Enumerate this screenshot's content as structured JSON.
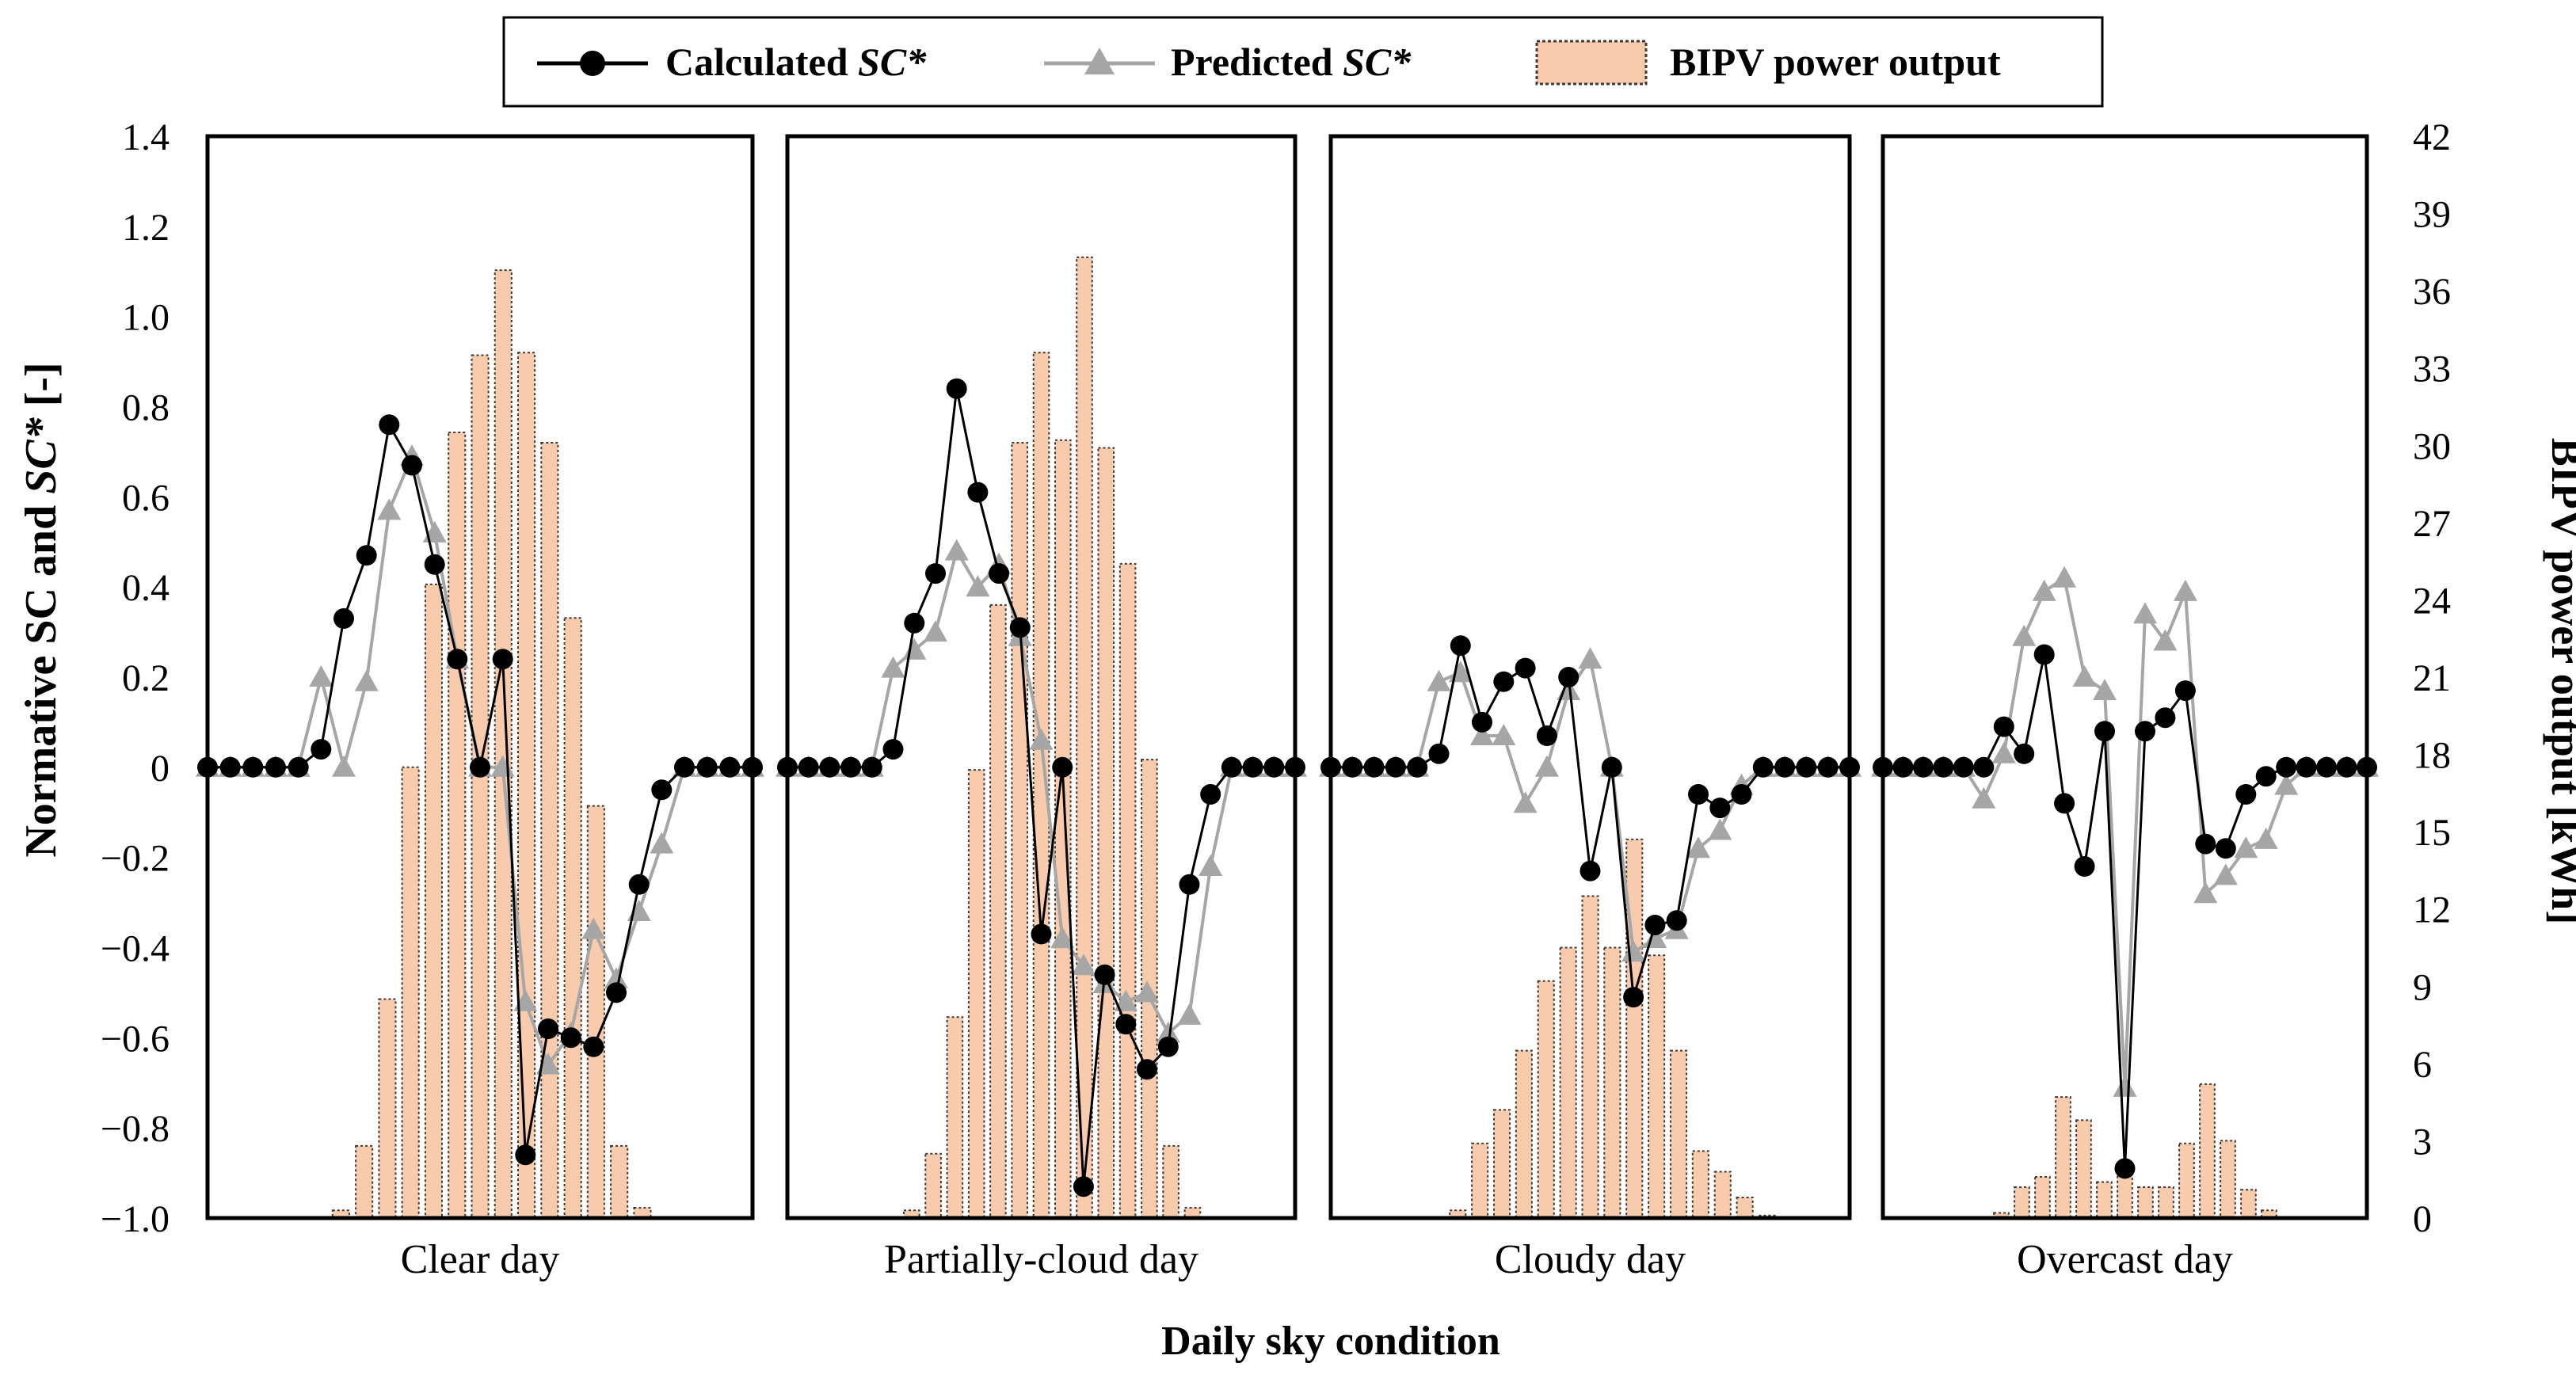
{
  "chart_data": {
    "type": "bar+line",
    "legend": {
      "position": "top-center",
      "entries": [
        {
          "key": "calculated",
          "label_main": "Calculated ",
          "label_italic": "SC*"
        },
        {
          "key": "predicted",
          "label_main": "Predicted ",
          "label_italic": "SC*"
        },
        {
          "key": "power",
          "label_main": "BIPV power output",
          "label_italic": ""
        }
      ]
    },
    "y_left": {
      "label_pre": "Normative SC and ",
      "label_italic": "SC*",
      "label_post": " [-]",
      "range": [
        -1.0,
        1.4
      ],
      "ticks": [
        "−1.0",
        "−0.8",
        "−0.6",
        "−0.4",
        "−0.2",
        "0",
        "0.2",
        "0.4",
        "0.6",
        "0.8",
        "1.0",
        "1.2",
        "1.4"
      ],
      "tick_values": [
        -1.0,
        -0.8,
        -0.6,
        -0.4,
        -0.2,
        0,
        0.2,
        0.4,
        0.6,
        0.8,
        1.0,
        1.2,
        1.4
      ]
    },
    "y_right": {
      "label": "BIPV power output [kWh]",
      "range": [
        0,
        42
      ],
      "ticks": [
        "0",
        "3",
        "6",
        "9",
        "12",
        "15",
        "18",
        "21",
        "24",
        "27",
        "30",
        "33",
        "36",
        "39",
        "42"
      ],
      "tick_values": [
        0,
        3,
        6,
        9,
        12,
        15,
        18,
        21,
        24,
        27,
        30,
        33,
        36,
        39,
        42
      ]
    },
    "xlabel": "Daily sky condition",
    "colors": {
      "calculated": "#000000",
      "predicted": "#a6a6a6",
      "bar_fill": "#f8cbad",
      "bar_stroke": "#3a3a3a"
    },
    "panels": [
      {
        "name": "Clear day",
        "power": [
          0,
          0,
          0,
          0,
          0,
          0.3,
          2.8,
          8.5,
          17.5,
          24.6,
          30.5,
          33.5,
          36.8,
          33.6,
          30.1,
          23.3,
          16.0,
          2.8,
          0.4,
          0,
          0,
          0,
          0
        ],
        "calculated": [
          0,
          0,
          0,
          0,
          0,
          0.04,
          0.33,
          0.47,
          0.76,
          0.67,
          0.45,
          0.24,
          0,
          0.24,
          -0.86,
          -0.58,
          -0.6,
          -0.62,
          -0.5,
          -0.26,
          -0.05,
          0,
          0,
          0,
          0
        ],
        "predicted": [
          0,
          0,
          0,
          0,
          0,
          0.2,
          0,
          0.19,
          0.57,
          0.69,
          0.52,
          0.24,
          0,
          0,
          -0.52,
          -0.66,
          -0.59,
          -0.36,
          -0.47,
          -0.32,
          -0.17,
          0,
          0,
          0,
          0
        ]
      },
      {
        "name": "Partially-cloud day",
        "power": [
          0,
          0,
          0,
          0,
          0,
          0.3,
          2.5,
          7.8,
          17.4,
          23.8,
          30.1,
          33.6,
          30.2,
          37.3,
          29.9,
          25.4,
          17.8,
          2.8,
          0.4,
          0,
          0,
          0,
          0
        ],
        "calculated": [
          0,
          0,
          0,
          0,
          0,
          0.04,
          0.32,
          0.43,
          0.84,
          0.61,
          0.43,
          0.31,
          -0.37,
          0,
          -0.93,
          -0.46,
          -0.57,
          -0.67,
          -0.62,
          -0.26,
          -0.06,
          0,
          0,
          0,
          0
        ],
        "predicted": [
          0,
          0,
          0,
          0,
          0,
          0.22,
          0.26,
          0.3,
          0.48,
          0.4,
          0.45,
          0.29,
          0.06,
          -0.38,
          -0.44,
          -0.48,
          -0.52,
          -0.5,
          -0.59,
          -0.55,
          -0.22,
          0,
          0,
          0,
          0
        ]
      },
      {
        "name": "Cloudy day",
        "power": [
          0,
          0,
          0,
          0,
          0,
          0.3,
          2.9,
          4.2,
          6.5,
          9.2,
          10.5,
          12.5,
          10.5,
          14.7,
          10.2,
          6.5,
          2.6,
          1.8,
          0.8,
          0.1,
          0,
          0,
          0
        ],
        "calculated": [
          0,
          0,
          0,
          0,
          0,
          0.03,
          0.27,
          0.1,
          0.19,
          0.22,
          0.07,
          0.2,
          -0.23,
          0,
          -0.51,
          -0.35,
          -0.34,
          -0.06,
          -0.09,
          -0.06,
          0,
          0,
          0,
          0,
          0
        ],
        "predicted": [
          0,
          0,
          0,
          0,
          0,
          0.19,
          0.21,
          0.07,
          0.07,
          -0.08,
          0,
          0.17,
          0.24,
          0,
          -0.41,
          -0.38,
          -0.36,
          -0.18,
          -0.14,
          -0.04,
          0,
          0,
          0,
          0,
          0
        ]
      },
      {
        "name": "Overcast day",
        "power": [
          0,
          0,
          0,
          0,
          0,
          0.2,
          1.2,
          1.6,
          4.7,
          3.8,
          1.4,
          2.1,
          1.2,
          1.2,
          2.9,
          5.2,
          3.0,
          1.1,
          0.3,
          0,
          0,
          0,
          0
        ],
        "calculated": [
          0,
          0,
          0,
          0,
          0,
          0,
          0.09,
          0.03,
          0.25,
          -0.08,
          -0.22,
          0.08,
          -0.89,
          0.08,
          0.11,
          0.17,
          -0.17,
          -0.18,
          -0.06,
          -0.02,
          0,
          0,
          0,
          0,
          0
        ],
        "predicted": [
          0,
          0,
          0,
          0,
          0,
          -0.07,
          0.03,
          0.29,
          0.39,
          0.42,
          0.2,
          0.17,
          -0.71,
          0.34,
          0.28,
          0.39,
          -0.28,
          -0.24,
          -0.18,
          -0.16,
          -0.04,
          0,
          0,
          0,
          0
        ]
      }
    ]
  }
}
